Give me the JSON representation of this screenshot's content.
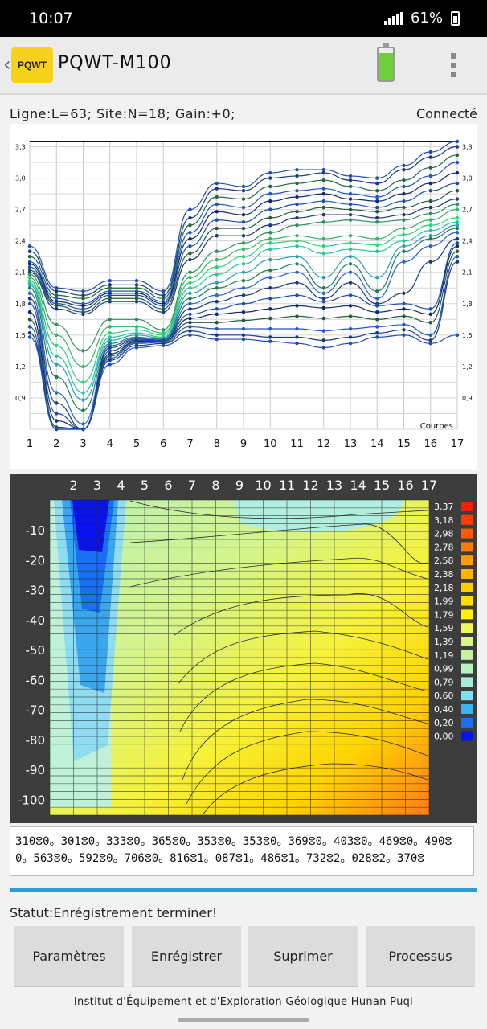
{
  "status_bar": {
    "time": "10:07",
    "battery_percent": "61%"
  },
  "app": {
    "title": "PQWT-M100",
    "logo_text": "PQWT"
  },
  "info": {
    "line": "Ligne:L=63;  Site:N=18;  Gain:+0;",
    "connection": "Connecté"
  },
  "curves_chart": {
    "y_ticks": [
      "3,3",
      "3,0",
      "2,7",
      "2,4",
      "2,1",
      "1,8",
      "1,5",
      "1,2",
      "0,9"
    ],
    "x_ticks": [
      "1",
      "2",
      "3",
      "4",
      "5",
      "6",
      "7",
      "8",
      "9",
      "10",
      "11",
      "12",
      "13",
      "14",
      "15",
      "16",
      "17"
    ],
    "label": "Courbes"
  },
  "contour_chart": {
    "x_ticks": [
      "2",
      "3",
      "4",
      "5",
      "6",
      "7",
      "8",
      "9",
      "10",
      "11",
      "12",
      "13",
      "14",
      "15",
      "16",
      "17"
    ],
    "y_ticks": [
      "-10",
      "-20",
      "-30",
      "-40",
      "-50",
      "-60",
      "-70",
      "-80",
      "-90",
      "-100"
    ],
    "legend_values": [
      "3,37",
      "3,18",
      "2,98",
      "2,78",
      "2,58",
      "2,38",
      "2,18",
      "1,99",
      "1,79",
      "1,59",
      "1,39",
      "1,19",
      "0,99",
      "0,79",
      "0,60",
      "0,40",
      "0,20",
      "0,00"
    ],
    "legend_colors": [
      "#ff1a00",
      "#ff3d00",
      "#ff5a00",
      "#ff7a00",
      "#ff9a00",
      "#ffb400",
      "#ffcc00",
      "#ffe000",
      "#fff000",
      "#f0f85a",
      "#d8f78a",
      "#c6f2a0",
      "#b8f0c0",
      "#a6ecd9",
      "#7fe0ee",
      "#38b4f0",
      "#1a6ef0",
      "#0a14e6"
    ]
  },
  "data_string": "310,0.301,0.333,0.365,0.353,0.353,0.369,0.403,0.469,0.490,0.563,0.592,0.706,0.816,1.087,1.486,1.732,2.028,2.370,",
  "data_string_display": "310ⵓ0。301ⵓ0。333ⵓ0。365ⵓ0。353ⵓ0。353ⵓ0。369ⵓ0。403ⵓ0。469ⵓ0。490ⵓ0。563ⵓ0。592ⵓ0。706ⵓ0。816ⵓ1。087ⵓ1。486ⵓ1。732ⵓ2。028ⵓ2。370ⵓ",
  "status": "Statut:Enrégistrement terminer!",
  "buttons": {
    "params": "Paramètres",
    "record": "Enrégistrer",
    "delete": "Suprimer",
    "process": "Processus"
  },
  "footer": "Institut d'Équipement et d'Exploration Géologique Hunan Puqi",
  "chart_data": {
    "type": "line",
    "x": [
      1,
      2,
      3,
      4,
      5,
      6,
      7,
      8,
      9,
      10,
      11,
      12,
      13,
      14,
      15,
      16,
      17
    ],
    "ylim": [
      0.6,
      3.35
    ],
    "series": [
      {
        "color": "#1f4fb5",
        "values": [
          2.35,
          1.95,
          1.92,
          2.02,
          2.02,
          1.92,
          2.7,
          2.95,
          2.92,
          3.05,
          3.08,
          3.08,
          3.02,
          3.0,
          3.12,
          3.25,
          3.35
        ]
      },
      {
        "color": "#1a3a7a",
        "values": [
          2.3,
          1.92,
          1.88,
          1.98,
          1.98,
          1.88,
          2.62,
          2.9,
          2.88,
          3.0,
          3.02,
          3.05,
          2.98,
          2.95,
          3.08,
          3.2,
          3.3
        ]
      },
      {
        "color": "#1f6b3f",
        "values": [
          2.25,
          1.88,
          1.85,
          1.95,
          1.95,
          1.85,
          2.55,
          2.82,
          2.8,
          2.92,
          2.95,
          2.98,
          2.92,
          2.88,
          2.98,
          3.1,
          3.22
        ]
      },
      {
        "color": "#2255cc",
        "values": [
          2.2,
          1.85,
          1.8,
          1.92,
          1.92,
          1.82,
          2.48,
          2.75,
          2.72,
          2.85,
          2.88,
          2.9,
          2.85,
          2.82,
          2.92,
          3.02,
          3.15
        ]
      },
      {
        "color": "#0f2a6b",
        "values": [
          2.18,
          1.82,
          1.78,
          1.9,
          1.9,
          1.8,
          2.42,
          2.68,
          2.65,
          2.78,
          2.82,
          2.85,
          2.8,
          2.78,
          2.85,
          2.95,
          3.05
        ]
      },
      {
        "color": "#1d4db0",
        "values": [
          2.15,
          1.8,
          1.75,
          1.88,
          1.88,
          1.78,
          2.35,
          2.6,
          2.58,
          2.7,
          2.75,
          2.78,
          2.75,
          2.72,
          2.78,
          2.88,
          2.95
        ]
      },
      {
        "color": "#225a3a",
        "values": [
          2.12,
          1.78,
          1.72,
          1.85,
          1.85,
          1.75,
          2.28,
          2.52,
          2.52,
          2.62,
          2.68,
          2.72,
          2.7,
          2.68,
          2.72,
          2.78,
          2.88
        ]
      },
      {
        "color": "#1a3a7a",
        "values": [
          2.1,
          1.75,
          1.7,
          1.82,
          1.82,
          1.72,
          2.22,
          2.45,
          2.45,
          2.55,
          2.62,
          2.65,
          2.65,
          2.62,
          2.65,
          2.72,
          2.8
        ]
      },
      {
        "color": "#2f8f5f",
        "values": [
          2.08,
          1.6,
          1.35,
          1.65,
          1.65,
          1.55,
          2.1,
          2.3,
          2.38,
          2.48,
          2.55,
          2.58,
          2.6,
          2.58,
          2.6,
          2.66,
          2.75
        ]
      },
      {
        "color": "#34b866",
        "values": [
          2.05,
          1.5,
          1.2,
          1.58,
          1.58,
          1.52,
          2.05,
          2.22,
          2.32,
          2.42,
          2.45,
          2.42,
          2.45,
          2.42,
          2.52,
          2.6,
          2.7
        ]
      },
      {
        "color": "#2fd07a",
        "values": [
          2.02,
          1.4,
          1.05,
          1.52,
          1.55,
          1.5,
          2.0,
          2.15,
          2.25,
          2.38,
          2.4,
          2.35,
          2.38,
          2.36,
          2.46,
          2.55,
          2.62
        ]
      },
      {
        "color": "#27c79a",
        "values": [
          2.0,
          1.3,
          0.95,
          1.48,
          1.52,
          1.48,
          1.95,
          2.08,
          2.18,
          2.32,
          2.35,
          2.28,
          2.32,
          2.3,
          2.4,
          2.5,
          2.58
        ]
      },
      {
        "color": "#2aa0b0",
        "values": [
          1.98,
          1.22,
          0.88,
          1.45,
          1.5,
          1.47,
          1.9,
          2.0,
          2.1,
          2.22,
          2.25,
          2.05,
          2.25,
          2.05,
          2.35,
          2.45,
          2.55
        ]
      },
      {
        "color": "#1e7f5a",
        "values": [
          1.95,
          1.1,
          0.78,
          1.42,
          1.48,
          1.46,
          1.85,
          1.95,
          2.02,
          2.12,
          2.18,
          1.95,
          2.18,
          1.92,
          2.3,
          2.42,
          2.52
        ]
      },
      {
        "color": "#2a66c8",
        "values": [
          1.9,
          0.95,
          0.65,
          1.4,
          1.47,
          1.45,
          1.8,
          1.88,
          1.95,
          2.05,
          2.1,
          1.9,
          2.1,
          1.85,
          2.2,
          2.35,
          2.48
        ]
      },
      {
        "color": "#1a3a7a",
        "values": [
          1.85,
          0.85,
          0.6,
          1.38,
          1.46,
          1.45,
          1.75,
          1.82,
          1.88,
          1.95,
          2.0,
          1.85,
          2.0,
          1.8,
          1.9,
          2.2,
          2.42
        ]
      },
      {
        "color": "#1d4db0",
        "values": [
          1.8,
          0.75,
          0.6,
          1.35,
          1.45,
          1.45,
          1.7,
          1.75,
          1.8,
          1.85,
          1.88,
          1.82,
          1.88,
          1.78,
          1.8,
          1.75,
          2.38
        ]
      },
      {
        "color": "#0f2a6b",
        "values": [
          1.72,
          0.68,
          0.6,
          1.32,
          1.44,
          1.44,
          1.66,
          1.7,
          1.72,
          1.75,
          1.78,
          1.76,
          1.78,
          1.72,
          1.75,
          1.7,
          2.35
        ]
      },
      {
        "color": "#225a3a",
        "values": [
          1.65,
          0.62,
          0.6,
          1.3,
          1.43,
          1.44,
          1.62,
          1.62,
          1.64,
          1.66,
          1.68,
          1.66,
          1.68,
          1.65,
          1.68,
          1.62,
          2.3
        ]
      },
      {
        "color": "#2255cc",
        "values": [
          1.58,
          0.6,
          0.6,
          1.28,
          1.42,
          1.43,
          1.58,
          1.56,
          1.56,
          1.56,
          1.56,
          1.54,
          1.56,
          1.58,
          1.6,
          1.5,
          2.25
        ]
      },
      {
        "color": "#1a3a7a",
        "values": [
          1.52,
          0.6,
          0.6,
          1.26,
          1.4,
          1.42,
          1.54,
          1.5,
          1.5,
          1.48,
          1.48,
          1.45,
          1.48,
          1.52,
          1.55,
          1.45,
          2.2
        ]
      },
      {
        "color": "#1f4fb5",
        "values": [
          1.48,
          0.6,
          0.6,
          1.22,
          1.38,
          1.4,
          1.5,
          1.46,
          1.46,
          1.44,
          1.42,
          1.38,
          1.42,
          1.48,
          1.5,
          1.42,
          1.5
        ]
      }
    ]
  }
}
